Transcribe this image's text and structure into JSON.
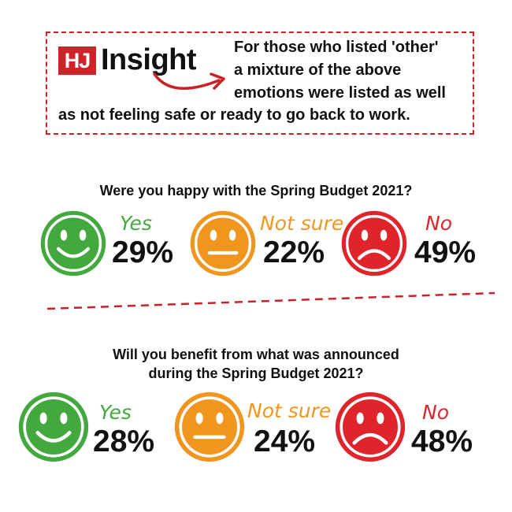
{
  "insight": {
    "badge": "HJ",
    "word": "Insight",
    "lines": [
      "For those who listed 'other'",
      "a mixture of the above",
      "emotions were listed as well",
      "as not feeling safe or ready to go back to work."
    ]
  },
  "colors": {
    "yes": "#43a93f",
    "not_sure": "#f0961e",
    "no": "#e0242b",
    "accent": "#d1222a"
  },
  "surveys": [
    {
      "question_lines": [
        "Were you happy with the Spring Budget 2021?"
      ],
      "answers": [
        {
          "label": "Yes",
          "percent": "29%",
          "icon": "happy-face-icon"
        },
        {
          "label": "Not sure",
          "percent": "22%",
          "icon": "neutral-face-icon"
        },
        {
          "label": "No",
          "percent": "49%",
          "icon": "sad-face-icon"
        }
      ]
    },
    {
      "question_lines": [
        "Will you benefit from what was announced",
        "during the Spring Budget 2021?"
      ],
      "answers": [
        {
          "label": "Yes",
          "percent": "28%",
          "icon": "happy-face-icon"
        },
        {
          "label": "Not sure",
          "percent": "24%",
          "icon": "neutral-face-icon"
        },
        {
          "label": "No",
          "percent": "48%",
          "icon": "sad-face-icon"
        }
      ]
    }
  ]
}
